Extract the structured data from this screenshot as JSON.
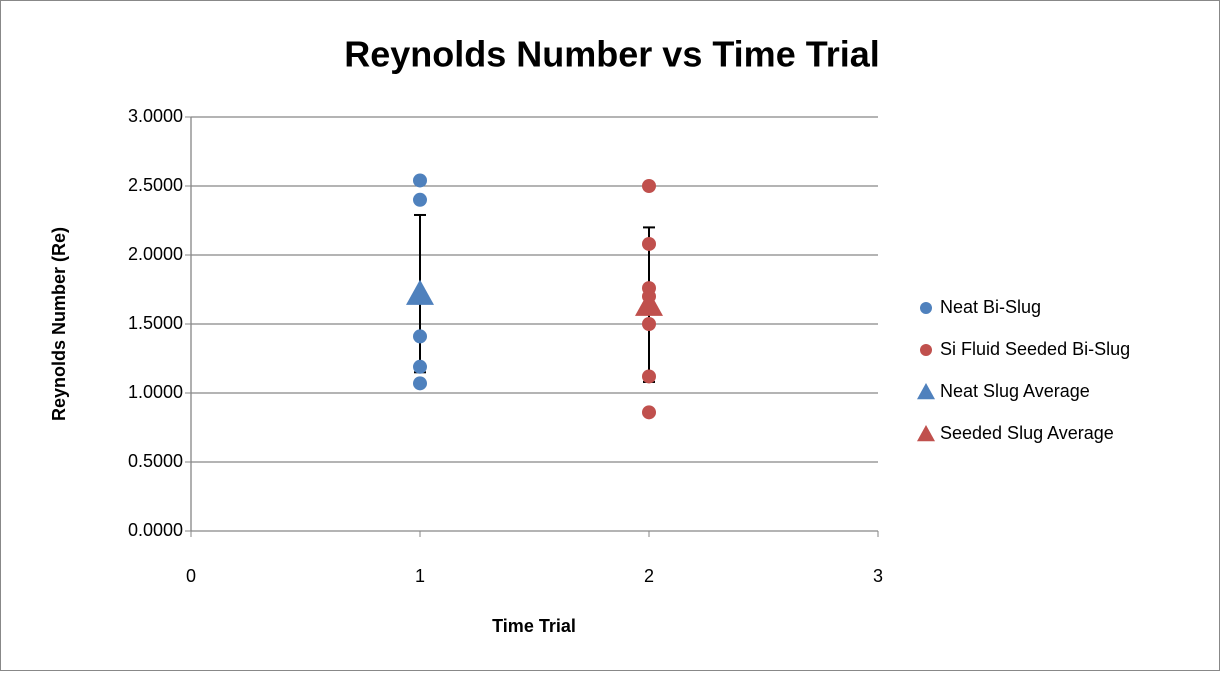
{
  "chart_data": {
    "type": "scatter",
    "title": "Reynolds Number vs Time Trial",
    "x_label": "Time Trial",
    "y_label": "Reynolds Number (Re)",
    "xlim": [
      0,
      3
    ],
    "xticks": [
      0,
      1,
      2,
      3
    ],
    "ylim": [
      0,
      3
    ],
    "yticks": [
      {
        "value": 0,
        "label": "0.0000"
      },
      {
        "value": 0.5,
        "label": "0.5000"
      },
      {
        "value": 1,
        "label": "1.0000"
      },
      {
        "value": 1.5,
        "label": "1.5000"
      },
      {
        "value": 2,
        "label": "2.0000"
      },
      {
        "value": 2.5,
        "label": "2.5000"
      },
      {
        "value": 3,
        "label": "3.0000"
      }
    ],
    "grid": true,
    "legend": "right",
    "series": [
      {
        "name": "Neat Bi-Slug",
        "color": "#4f81bd",
        "marker": "circle",
        "x": [
          1,
          1,
          1,
          1,
          1
        ],
        "values": [
          2.54,
          2.4,
          1.41,
          1.19,
          1.07
        ]
      },
      {
        "name": "Si Fluid Seeded Bi-Slug",
        "color": "#c0504d",
        "marker": "circle",
        "x": [
          2,
          2,
          2,
          2,
          2,
          2,
          2
        ],
        "values": [
          2.5,
          2.08,
          1.76,
          1.7,
          1.5,
          1.12,
          0.86
        ]
      },
      {
        "name": "Neat Slug Average",
        "color": "#4f81bd",
        "marker": "triangle",
        "x": [
          1
        ],
        "values": [
          1.72
        ],
        "errors": [
          0.57
        ]
      },
      {
        "name": "Seeded Slug Average",
        "color": "#c0504d",
        "marker": "triangle",
        "x": [
          2
        ],
        "values": [
          1.64
        ],
        "errors": [
          0.56
        ]
      }
    ]
  }
}
